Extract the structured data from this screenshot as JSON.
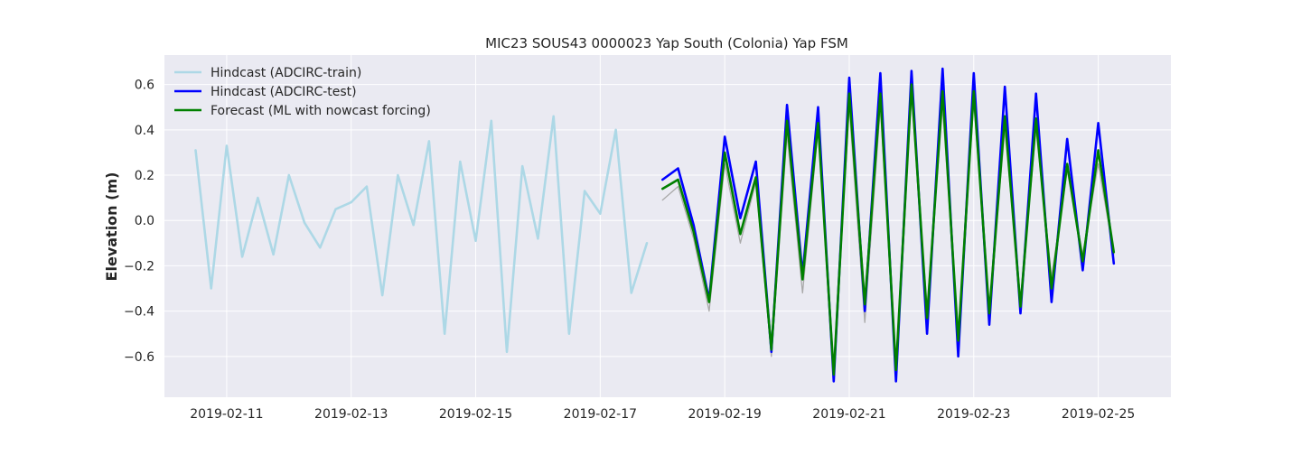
{
  "chart_data": {
    "type": "line",
    "title": "MIC23 SOUS43 0000023 Yap South (Colonia) Yap FSM",
    "xlabel": "",
    "ylabel": "Elevation (m)",
    "x_range": [
      "2019-02-10T00:00",
      "2019-02-26T04:00"
    ],
    "ylim": [
      -0.78,
      0.73
    ],
    "y_ticks": [
      -0.6,
      -0.4,
      -0.2,
      0.0,
      0.2,
      0.4,
      0.6
    ],
    "y_tick_labels": [
      "−0.6",
      "−0.4",
      "−0.2",
      "0.0",
      "0.2",
      "0.4",
      "0.6"
    ],
    "x_ticks": [
      "2019-02-11",
      "2019-02-13",
      "2019-02-15",
      "2019-02-17",
      "2019-02-19",
      "2019-02-21",
      "2019-02-23",
      "2019-02-25"
    ],
    "grid": true,
    "legend_position": "top-left",
    "background_color": "#eaeaf2",
    "series": [
      {
        "name": "Hindcast (ADCIRC-train)",
        "color": "#add8e6",
        "x": [
          "2019-02-10T12:00",
          "2019-02-10T18:00",
          "2019-02-11T00:00",
          "2019-02-11T06:00",
          "2019-02-11T12:00",
          "2019-02-11T18:00",
          "2019-02-12T00:00",
          "2019-02-12T06:00",
          "2019-02-12T12:00",
          "2019-02-12T18:00",
          "2019-02-13T00:00",
          "2019-02-13T06:00",
          "2019-02-13T12:00",
          "2019-02-13T18:00",
          "2019-02-14T00:00",
          "2019-02-14T06:00",
          "2019-02-14T12:00",
          "2019-02-14T18:00",
          "2019-02-15T00:00",
          "2019-02-15T06:00",
          "2019-02-15T12:00",
          "2019-02-15T18:00",
          "2019-02-16T00:00",
          "2019-02-16T06:00",
          "2019-02-16T12:00",
          "2019-02-16T18:00",
          "2019-02-17T00:00",
          "2019-02-17T06:00",
          "2019-02-17T12:00",
          "2019-02-17T18:00"
        ],
        "values": [
          0.31,
          -0.3,
          0.33,
          -0.16,
          0.1,
          -0.15,
          0.2,
          -0.01,
          -0.12,
          0.05,
          0.08,
          0.15,
          -0.33,
          0.2,
          -0.02,
          0.35,
          -0.5,
          0.26,
          -0.09,
          0.44,
          -0.58,
          0.24,
          -0.08,
          0.46,
          -0.5,
          0.13,
          0.03,
          0.4,
          -0.32,
          -0.1
        ]
      },
      {
        "name": "",
        "color": "#a9a9a9",
        "x": [
          "2019-02-18T00:00",
          "2019-02-18T06:00",
          "2019-02-18T12:00",
          "2019-02-18T18:00",
          "2019-02-19T00:00",
          "2019-02-19T06:00",
          "2019-02-19T12:00",
          "2019-02-19T18:00",
          "2019-02-20T00:00",
          "2019-02-20T06:00",
          "2019-02-20T12:00",
          "2019-02-20T18:00",
          "2019-02-21T00:00",
          "2019-02-21T06:00",
          "2019-02-21T12:00",
          "2019-02-21T18:00",
          "2019-02-22T00:00",
          "2019-02-22T06:00",
          "2019-02-22T12:00",
          "2019-02-22T18:00",
          "2019-02-23T00:00",
          "2019-02-23T06:00",
          "2019-02-23T12:00",
          "2019-02-23T18:00",
          "2019-02-24T00:00",
          "2019-02-24T06:00",
          "2019-02-24T12:00",
          "2019-02-24T18:00",
          "2019-02-25T00:00",
          "2019-02-25T06:00"
        ],
        "values": [
          0.09,
          0.15,
          -0.08,
          -0.4,
          0.25,
          -0.1,
          0.17,
          -0.6,
          0.38,
          -0.32,
          0.4,
          -0.66,
          0.5,
          -0.45,
          0.5,
          -0.62,
          0.55,
          -0.38,
          0.5,
          -0.5,
          0.52,
          -0.38,
          0.4,
          -0.35,
          0.4,
          -0.25,
          0.22,
          -0.15,
          0.25,
          -0.15
        ]
      },
      {
        "name": "Hindcast (ADCIRC-test)",
        "color": "#0000ff",
        "x": [
          "2019-02-18T00:00",
          "2019-02-18T06:00",
          "2019-02-18T12:00",
          "2019-02-18T18:00",
          "2019-02-19T00:00",
          "2019-02-19T06:00",
          "2019-02-19T12:00",
          "2019-02-19T18:00",
          "2019-02-20T00:00",
          "2019-02-20T06:00",
          "2019-02-20T12:00",
          "2019-02-20T18:00",
          "2019-02-21T00:00",
          "2019-02-21T06:00",
          "2019-02-21T12:00",
          "2019-02-21T18:00",
          "2019-02-22T00:00",
          "2019-02-22T06:00",
          "2019-02-22T12:00",
          "2019-02-22T18:00",
          "2019-02-23T00:00",
          "2019-02-23T06:00",
          "2019-02-23T12:00",
          "2019-02-23T18:00",
          "2019-02-24T00:00",
          "2019-02-24T06:00",
          "2019-02-24T12:00",
          "2019-02-24T18:00",
          "2019-02-25T00:00",
          "2019-02-25T06:00"
        ],
        "values": [
          0.18,
          0.23,
          -0.02,
          -0.35,
          0.37,
          0.01,
          0.26,
          -0.58,
          0.51,
          -0.24,
          0.5,
          -0.71,
          0.63,
          -0.4,
          0.65,
          -0.71,
          0.66,
          -0.5,
          0.67,
          -0.6,
          0.65,
          -0.46,
          0.59,
          -0.41,
          0.56,
          -0.36,
          0.36,
          -0.22,
          0.43,
          -0.19
        ]
      },
      {
        "name": "Forecast (ML with nowcast forcing)",
        "color": "#008000",
        "x": [
          "2019-02-18T00:00",
          "2019-02-18T06:00",
          "2019-02-18T12:00",
          "2019-02-18T18:00",
          "2019-02-19T00:00",
          "2019-02-19T06:00",
          "2019-02-19T12:00",
          "2019-02-19T18:00",
          "2019-02-20T00:00",
          "2019-02-20T06:00",
          "2019-02-20T12:00",
          "2019-02-20T18:00",
          "2019-02-21T00:00",
          "2019-02-21T06:00",
          "2019-02-21T12:00",
          "2019-02-21T18:00",
          "2019-02-22T00:00",
          "2019-02-22T06:00",
          "2019-02-22T12:00",
          "2019-02-22T18:00",
          "2019-02-23T00:00",
          "2019-02-23T06:00",
          "2019-02-23T12:00",
          "2019-02-23T18:00",
          "2019-02-24T00:00",
          "2019-02-24T06:00",
          "2019-02-24T12:00",
          "2019-02-24T18:00",
          "2019-02-25T00:00",
          "2019-02-25T06:00"
        ],
        "values": [
          0.14,
          0.18,
          -0.05,
          -0.36,
          0.3,
          -0.06,
          0.19,
          -0.57,
          0.44,
          -0.26,
          0.43,
          -0.68,
          0.56,
          -0.37,
          0.56,
          -0.66,
          0.6,
          -0.43,
          0.57,
          -0.53,
          0.57,
          -0.41,
          0.46,
          -0.38,
          0.45,
          -0.3,
          0.25,
          -0.18,
          0.31,
          -0.14
        ]
      }
    ]
  }
}
